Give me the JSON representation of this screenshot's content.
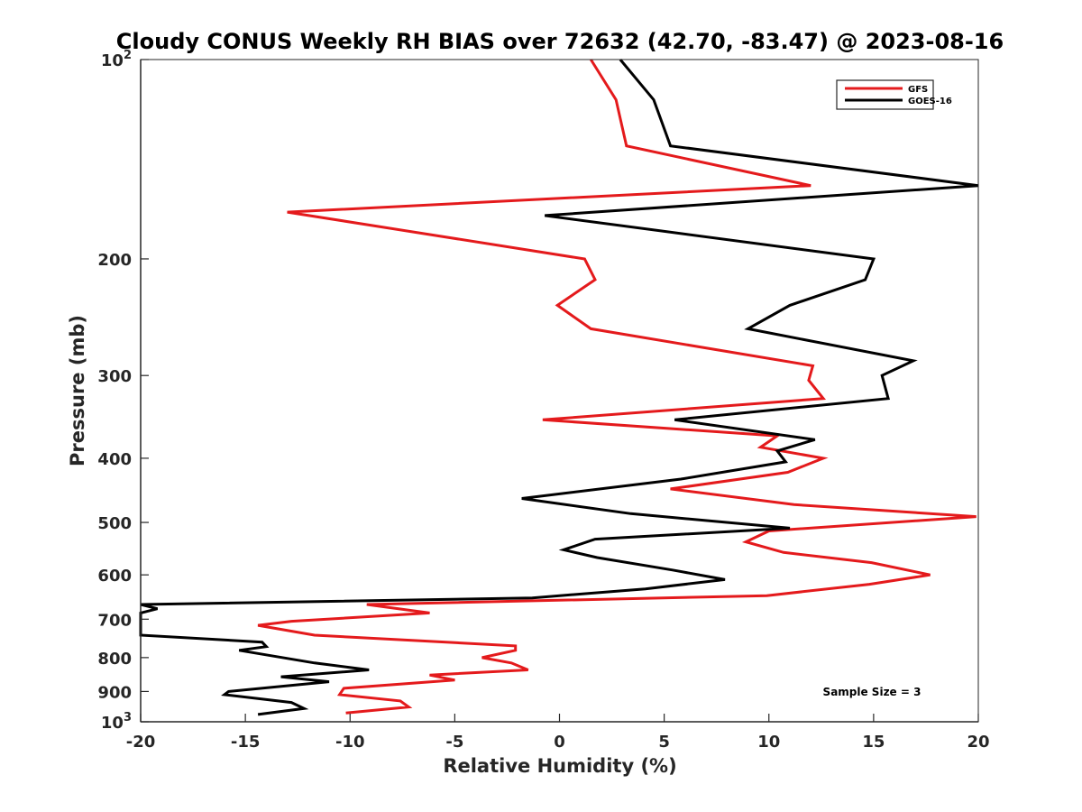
{
  "chart_data": {
    "type": "line",
    "title": "Cloudy CONUS Weekly RH BIAS over 72632 (42.70, -83.47) @ 2023-08-16",
    "xlabel": "Relative Humidity (%)",
    "ylabel": "Pressure (mb)",
    "xlim": [
      -20,
      20
    ],
    "ylim": [
      100,
      1000
    ],
    "y_scale": "log",
    "y_reversed": true,
    "x_ticks": [
      {
        "value": -20,
        "label": "-20"
      },
      {
        "value": -15,
        "label": "-15"
      },
      {
        "value": -10,
        "label": "-10"
      },
      {
        "value": -5,
        "label": "-5"
      },
      {
        "value": 0,
        "label": "0"
      },
      {
        "value": 5,
        "label": "5"
      },
      {
        "value": 10,
        "label": "10"
      },
      {
        "value": 15,
        "label": "15"
      },
      {
        "value": 20,
        "label": "20"
      }
    ],
    "y_ticks": [
      {
        "value": 100,
        "label": "10",
        "sup": "2"
      },
      {
        "value": 200,
        "label": "200",
        "sup": ""
      },
      {
        "value": 300,
        "label": "300",
        "sup": ""
      },
      {
        "value": 400,
        "label": "400",
        "sup": ""
      },
      {
        "value": 500,
        "label": "500",
        "sup": ""
      },
      {
        "value": 600,
        "label": "600",
        "sup": ""
      },
      {
        "value": 700,
        "label": "700",
        "sup": ""
      },
      {
        "value": 800,
        "label": "800",
        "sup": ""
      },
      {
        "value": 900,
        "label": "900",
        "sup": ""
      },
      {
        "value": 1000,
        "label": "10",
        "sup": "3"
      }
    ],
    "grid": false,
    "legend_position": "top-right",
    "annotation": "Sample Size = 3",
    "series": [
      {
        "name": "GFS",
        "color": "#e41a1c",
        "points": [
          [
            1.5,
            100
          ],
          [
            2.7,
            115
          ],
          [
            3.2,
            135
          ],
          [
            12.0,
            155
          ],
          [
            -13.0,
            170
          ],
          [
            1.2,
            200
          ],
          [
            1.7,
            215
          ],
          [
            -0.1,
            235
          ],
          [
            1.5,
            255
          ],
          [
            12.1,
            290
          ],
          [
            11.9,
            305
          ],
          [
            12.6,
            325
          ],
          [
            -0.8,
            350
          ],
          [
            10.4,
            370
          ],
          [
            9.6,
            385
          ],
          [
            12.6,
            400
          ],
          [
            10.9,
            420
          ],
          [
            5.3,
            445
          ],
          [
            11.2,
            470
          ],
          [
            19.9,
            490
          ],
          [
            10.0,
            515
          ],
          [
            8.9,
            535
          ],
          [
            10.7,
            555
          ],
          [
            14.9,
            575
          ],
          [
            17.7,
            600
          ],
          [
            14.8,
            620
          ],
          [
            9.9,
            645
          ],
          [
            -9.2,
            665
          ],
          [
            -6.2,
            685
          ],
          [
            -12.8,
            705
          ],
          [
            -14.4,
            715
          ],
          [
            -11.7,
            740
          ],
          [
            -2.1,
            768
          ],
          [
            -2.1,
            780
          ],
          [
            -3.7,
            800
          ],
          [
            -2.3,
            815
          ],
          [
            -1.5,
            835
          ],
          [
            -6.2,
            850
          ],
          [
            -5.0,
            865
          ],
          [
            -10.3,
            890
          ],
          [
            -10.5,
            910
          ],
          [
            -7.6,
            930
          ],
          [
            -7.2,
            950
          ],
          [
            -10.2,
            970
          ]
        ]
      },
      {
        "name": "GOES-16",
        "color": "#000000",
        "points": [
          [
            2.9,
            100
          ],
          [
            4.5,
            115
          ],
          [
            5.3,
            135
          ],
          [
            20.0,
            155
          ],
          [
            -0.7,
            172
          ],
          [
            15.0,
            200
          ],
          [
            14.6,
            215
          ],
          [
            11.0,
            235
          ],
          [
            9.0,
            255
          ],
          [
            16.9,
            285
          ],
          [
            15.4,
            300
          ],
          [
            15.7,
            325
          ],
          [
            5.5,
            350
          ],
          [
            12.2,
            375
          ],
          [
            10.4,
            390
          ],
          [
            10.8,
            405
          ],
          [
            5.8,
            430
          ],
          [
            -1.8,
            460
          ],
          [
            3.4,
            485
          ],
          [
            11.0,
            510
          ],
          [
            1.7,
            530
          ],
          [
            0.2,
            550
          ],
          [
            1.8,
            565
          ],
          [
            5.4,
            590
          ],
          [
            7.9,
            610
          ],
          [
            4.1,
            630
          ],
          [
            -1.3,
            650
          ],
          [
            -20.0,
            665
          ],
          [
            -19.2,
            675
          ],
          [
            -20.0,
            685
          ],
          [
            -20.0,
            740
          ],
          [
            -14.2,
            758
          ],
          [
            -14.0,
            770
          ],
          [
            -15.3,
            780
          ],
          [
            -11.7,
            815
          ],
          [
            -9.1,
            835
          ],
          [
            -13.3,
            855
          ],
          [
            -11.0,
            870
          ],
          [
            -15.8,
            900
          ],
          [
            -16.0,
            910
          ],
          [
            -12.8,
            935
          ],
          [
            -12.2,
            955
          ],
          [
            -14.4,
            975
          ]
        ]
      }
    ]
  }
}
